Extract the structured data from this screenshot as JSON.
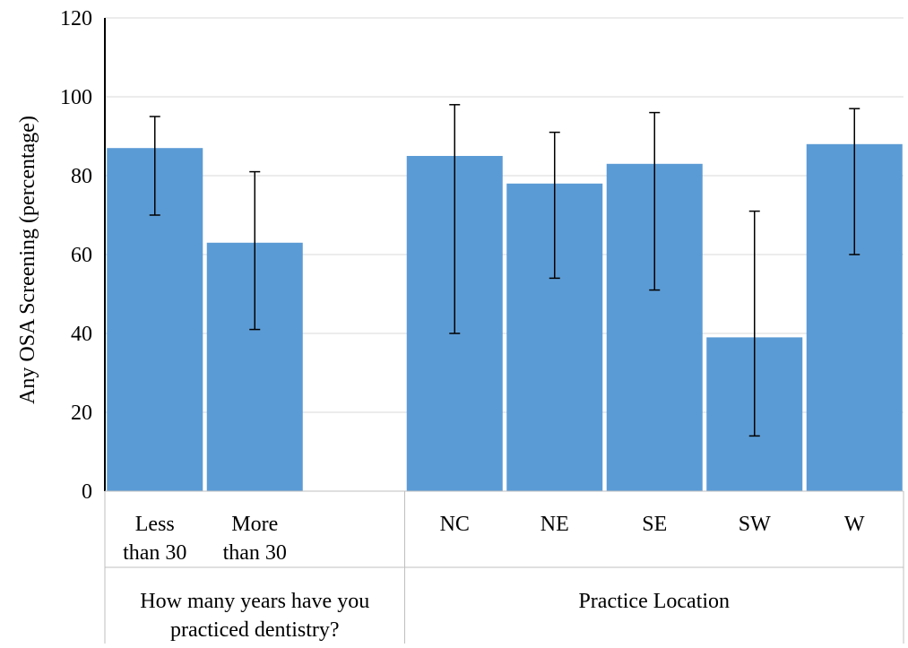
{
  "chart_data": {
    "type": "bar",
    "title": "",
    "ylabel": "Any OSA Screening (percentage)",
    "ylim": [
      0,
      120
    ],
    "yticks": [
      0,
      20,
      40,
      60,
      80,
      100,
      120
    ],
    "grid": true,
    "bar_color": "#5b9bd5",
    "groups": [
      {
        "label": "How many years have you practiced dentistry?",
        "categories": [
          "Less than 30",
          "More than 30"
        ],
        "values": [
          87,
          63
        ],
        "error_low": [
          70,
          41
        ],
        "error_high": [
          95,
          81
        ]
      },
      {
        "label": "Practice Location",
        "categories": [
          "NC",
          "NE",
          "SE",
          "SW",
          "W"
        ],
        "values": [
          85,
          78,
          83,
          39,
          88
        ],
        "error_low": [
          40,
          54,
          51,
          14,
          60
        ],
        "error_high": [
          98,
          91,
          96,
          71,
          97
        ]
      }
    ]
  }
}
